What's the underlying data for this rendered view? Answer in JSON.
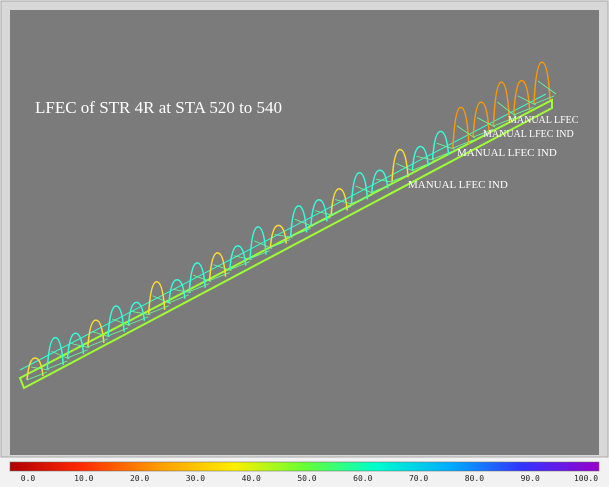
{
  "viewport": {
    "title": "LFEC of STR 4R at STA 520 to 540",
    "labels": [
      "MANUAL LFEC",
      "MANUAL LFEC IND",
      "MANUAL LFEC IND",
      "MANUAL LFEC IND"
    ]
  },
  "colorbar": {
    "labels": [
      "0.0",
      "10.0",
      "20.0",
      "30.0",
      "40.0",
      "50.0",
      "60.0",
      "70.0",
      "80.0",
      "90.0",
      "100.0"
    ]
  }
}
